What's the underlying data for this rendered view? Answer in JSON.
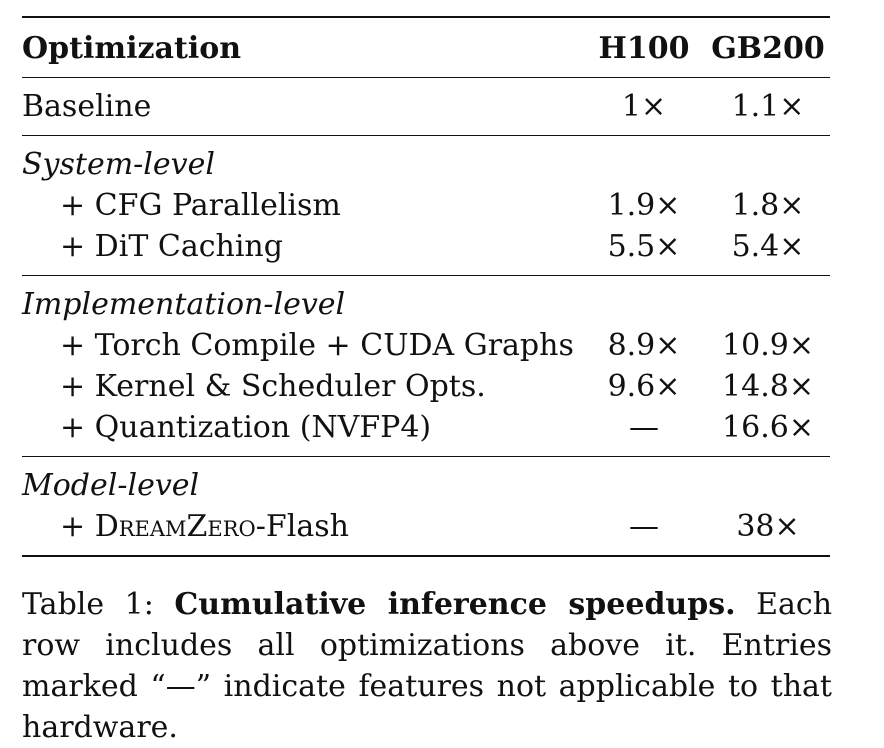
{
  "table": {
    "headers": {
      "optimization": "Optimization",
      "h100": "H100",
      "gb200": "GB200"
    },
    "baseline": {
      "label": "Baseline",
      "h100": "1×",
      "gb200": "1.1×"
    },
    "groups": [
      {
        "title": "System-level",
        "rows": [
          {
            "label": "+ CFG Parallelism",
            "h100": "1.9×",
            "gb200": "1.8×"
          },
          {
            "label": "+ DiT Caching",
            "h100": "5.5×",
            "gb200": "5.4×"
          }
        ]
      },
      {
        "title": "Implementation-level",
        "rows": [
          {
            "label": "+ Torch Compile + CUDA Graphs",
            "h100": "8.9×",
            "gb200": "10.9×"
          },
          {
            "label": "+ Kernel & Scheduler Opts.",
            "h100": "9.6×",
            "gb200": "14.8×"
          },
          {
            "label": "+ Quantization (NVFP4)",
            "h100": "—",
            "gb200": "16.6×"
          }
        ]
      },
      {
        "title": "Model-level",
        "rows": [
          {
            "label_prefix": "+ ",
            "label_smallcaps": "DreamZero",
            "label_suffix": "-Flash",
            "h100": "—",
            "gb200": "38×"
          }
        ]
      }
    ]
  },
  "caption": {
    "prefix": "Table 1: ",
    "bold": "Cumulative inference speedups.",
    "text": " Each row includes all optimizations above it. Entries marked “—” indicate features not applicable to that hardware."
  }
}
